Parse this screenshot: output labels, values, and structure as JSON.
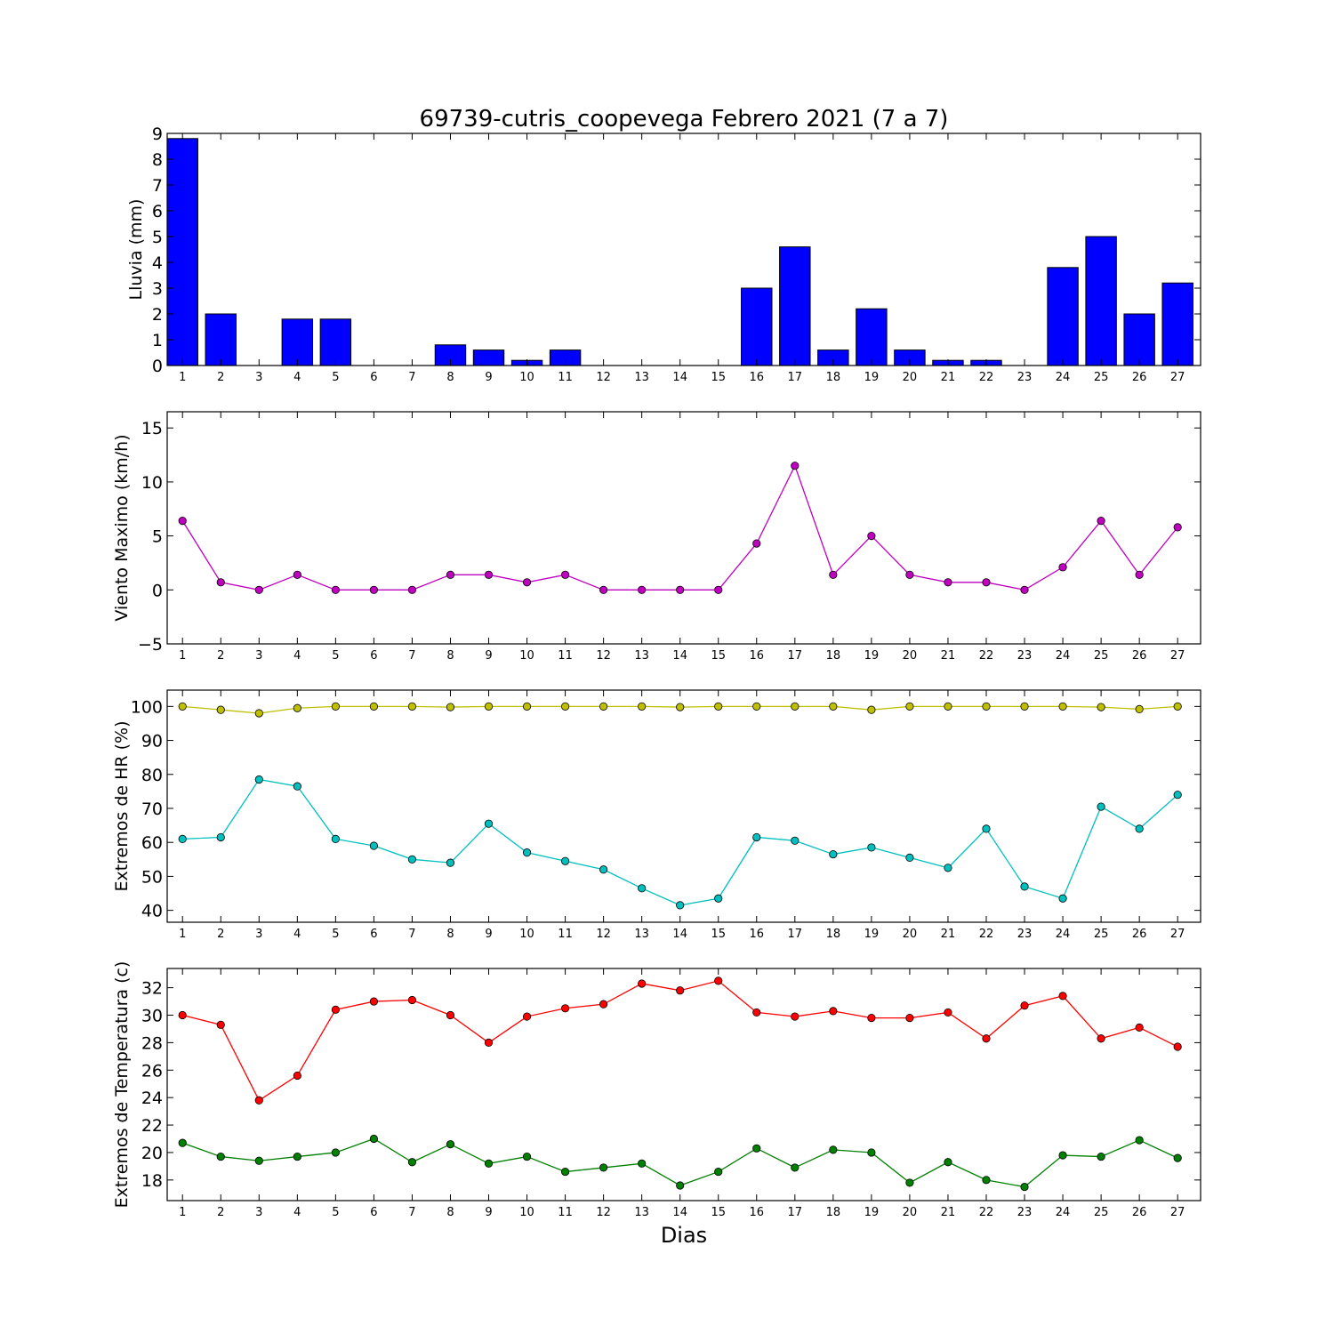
{
  "figure": {
    "title": "69739-cutris_coopevega Febrero 2021  (7 a 7)",
    "xlabel": "Dias"
  },
  "chart_data": [
    {
      "type": "bar",
      "ylabel": "Lluvia (mm)",
      "ylim": [
        0,
        9
      ],
      "yticks": [
        0,
        1,
        2,
        3,
        4,
        5,
        6,
        7,
        8,
        9
      ],
      "categories": [
        1,
        2,
        3,
        4,
        5,
        6,
        7,
        8,
        9,
        10,
        11,
        12,
        13,
        14,
        15,
        16,
        17,
        18,
        19,
        20,
        21,
        22,
        23,
        24,
        25,
        26,
        27
      ],
      "series": [
        {
          "color": "#0000ff",
          "values": [
            8.8,
            2.0,
            0.0,
            1.8,
            1.8,
            0.0,
            0.0,
            0.8,
            0.6,
            0.2,
            0.6,
            0.0,
            0.0,
            0.0,
            0.0,
            3.0,
            4.6,
            0.6,
            2.2,
            0.6,
            0.2,
            0.2,
            0.0,
            3.8,
            5.0,
            2.0,
            3.2
          ]
        }
      ]
    },
    {
      "type": "line",
      "ylabel": "Viento Maximo (km/h)",
      "ylim": [
        -5,
        16.5
      ],
      "yticks": [
        -5,
        0,
        5,
        10,
        15
      ],
      "categories": [
        1,
        2,
        3,
        4,
        5,
        6,
        7,
        8,
        9,
        10,
        11,
        12,
        13,
        14,
        15,
        16,
        17,
        18,
        19,
        20,
        21,
        22,
        23,
        24,
        25,
        26,
        27
      ],
      "series": [
        {
          "color": "#bf00bf",
          "values": [
            6.4,
            0.7,
            0.0,
            1.4,
            0.0,
            0.0,
            0.0,
            1.4,
            1.4,
            0.7,
            1.4,
            0.0,
            0.0,
            0.0,
            0.0,
            4.3,
            11.5,
            1.4,
            5.0,
            1.4,
            0.7,
            0.7,
            0.0,
            2.1,
            6.4,
            1.4,
            5.8
          ]
        }
      ]
    },
    {
      "type": "line",
      "ylabel": "Extremos de HR (%)",
      "ylim": [
        36.5,
        104.8
      ],
      "yticks": [
        40,
        50,
        60,
        70,
        80,
        90,
        100
      ],
      "categories": [
        1,
        2,
        3,
        4,
        5,
        6,
        7,
        8,
        9,
        10,
        11,
        12,
        13,
        14,
        15,
        16,
        17,
        18,
        19,
        20,
        21,
        22,
        23,
        24,
        25,
        26,
        27
      ],
      "series": [
        {
          "color": "#bfbf00",
          "values": [
            100,
            99,
            98,
            99.5,
            100,
            100,
            100,
            99.8,
            100,
            100,
            100,
            100,
            100,
            99.8,
            100,
            100,
            100,
            100,
            99,
            100,
            100,
            100,
            100,
            100,
            99.8,
            99.2,
            100
          ]
        },
        {
          "color": "#00bfbf",
          "values": [
            61,
            61.5,
            78.5,
            76.5,
            61,
            59,
            55,
            54,
            65.5,
            57,
            54.5,
            52,
            46.5,
            41.5,
            43.5,
            61.5,
            60.5,
            56.5,
            58.5,
            55.5,
            52.5,
            64,
            47,
            43.5,
            70.5,
            64,
            74
          ]
        }
      ]
    },
    {
      "type": "line",
      "ylabel": "Extremos de Temperatura (c)",
      "ylim": [
        16.5,
        33.4
      ],
      "yticks": [
        18,
        20,
        22,
        24,
        26,
        28,
        30,
        32
      ],
      "categories": [
        1,
        2,
        3,
        4,
        5,
        6,
        7,
        8,
        9,
        10,
        11,
        12,
        13,
        14,
        15,
        16,
        17,
        18,
        19,
        20,
        21,
        22,
        23,
        24,
        25,
        26,
        27
      ],
      "series": [
        {
          "color": "#ff0000",
          "values": [
            30.0,
            29.3,
            23.8,
            25.6,
            30.4,
            31.0,
            31.1,
            30.0,
            28.0,
            29.9,
            30.5,
            30.8,
            32.3,
            31.8,
            32.5,
            30.2,
            29.9,
            30.3,
            29.8,
            29.8,
            30.2,
            28.3,
            30.7,
            31.4,
            28.3,
            29.1,
            27.7
          ]
        },
        {
          "color": "#008000",
          "values": [
            20.7,
            19.7,
            19.4,
            19.7,
            20.0,
            21.0,
            19.3,
            20.6,
            19.2,
            19.7,
            18.6,
            18.9,
            19.2,
            17.6,
            18.6,
            20.3,
            18.9,
            20.2,
            20.0,
            17.8,
            19.3,
            18.0,
            17.5,
            19.8,
            19.7,
            20.9,
            19.6
          ]
        }
      ]
    }
  ]
}
